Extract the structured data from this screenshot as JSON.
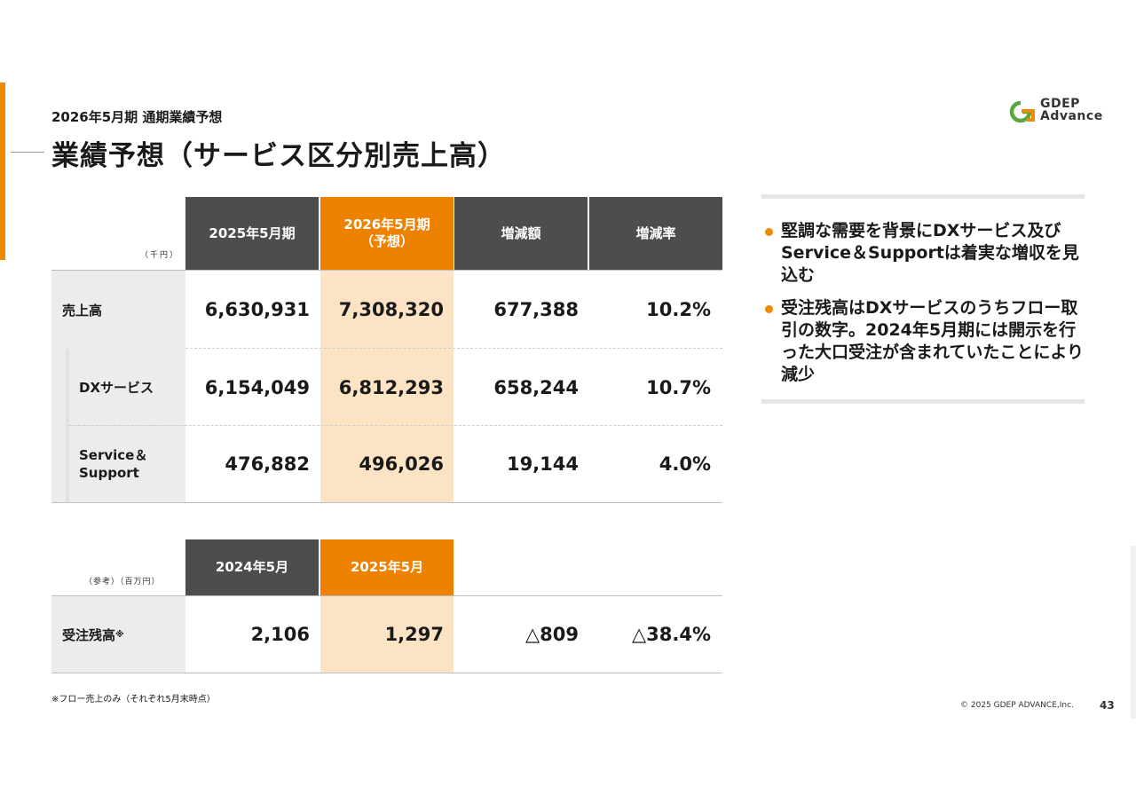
{
  "header": {
    "subtitle": "2026年5月期 通期業績予想",
    "title": "業績予想（サービス区分別売上高）",
    "logo": {
      "line1": "GDEP",
      "line2": "Advance",
      "colors": {
        "orange": "#f08a00",
        "green": "#5aa63c"
      }
    }
  },
  "main_table": {
    "unit": "（千円）",
    "columns": [
      "2025年5月期",
      "2026年5月期",
      "（予想）",
      "増減額",
      "増減率"
    ],
    "rows": [
      {
        "label": "売上高",
        "values": [
          "6,630,931",
          "7,308,320",
          "677,388",
          "10.2%"
        ]
      },
      {
        "label": "DXサービス",
        "values": [
          "6,154,049",
          "6,812,293",
          "658,244",
          "10.7%"
        ]
      },
      {
        "label_line1": "Service＆",
        "label_line2": "Support",
        "values": [
          "476,882",
          "496,026",
          "19,144",
          "4.0%"
        ]
      }
    ]
  },
  "ref_table": {
    "unit": "（参考）（百万円）",
    "columns": [
      "2024年5月",
      "2025年5月"
    ],
    "row": {
      "label": "受注残高",
      "mark": "※",
      "values": [
        "2,106",
        "1,297",
        "△809",
        "△38.4%"
      ]
    }
  },
  "side_notes": [
    "堅調な需要を背景にDXサービス及びService＆Supportは着実な増収を見込む",
    "受注残高はDXサービスのうちフロー取引の数字。2024年5月期には開示を行った大口受注が含まれていたことにより減少"
  ],
  "footnote": "※フロー売上のみ（それぞれ5月末時点）",
  "copyright": "© 2025 GDEP ADVANCE,Inc.",
  "page_number": "43",
  "colors": {
    "accent": "#ee8200",
    "header_dark": "#4d4d4d",
    "highlight": "#fce3c4",
    "label_bg": "#ececec"
  }
}
